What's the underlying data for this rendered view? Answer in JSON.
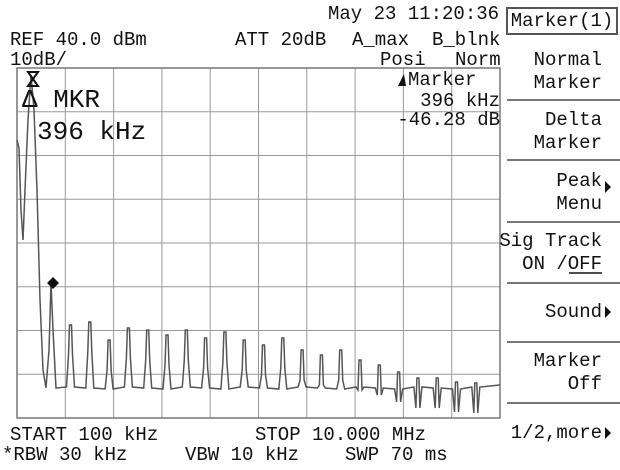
{
  "status": {
    "datetime": "May 23 11:20:36",
    "ref": "REF 40.0 dBm",
    "att": "ATT 20dB",
    "trace_a": "A_max",
    "trace_b": "B_blnk",
    "scale": "10dB/",
    "detector": "Posi",
    "mode": "Norm"
  },
  "marker": {
    "label": "Δ MKR",
    "frequency": "396 kHz",
    "readout_title": "Marker",
    "readout_frequency": "396 kHz",
    "readout_level": "-46.28 dB"
  },
  "footer": {
    "start": "START 100 kHz",
    "stop": "STOP 10.000 MHz",
    "rbw": "*RBW 30 kHz",
    "vbw": "VBW 10 kHz",
    "swp": "SWP 70 ms"
  },
  "menu": {
    "title": "Marker(1)",
    "items": [
      [
        "Normal",
        "Marker"
      ],
      [
        "Delta",
        "Marker"
      ],
      [
        "Peak",
        "Menu"
      ],
      [
        "Sig Track",
        "ON /OFF"
      ],
      [
        "Sound"
      ],
      [
        "Marker",
        "Off"
      ]
    ],
    "more": "1/2,more"
  }
}
